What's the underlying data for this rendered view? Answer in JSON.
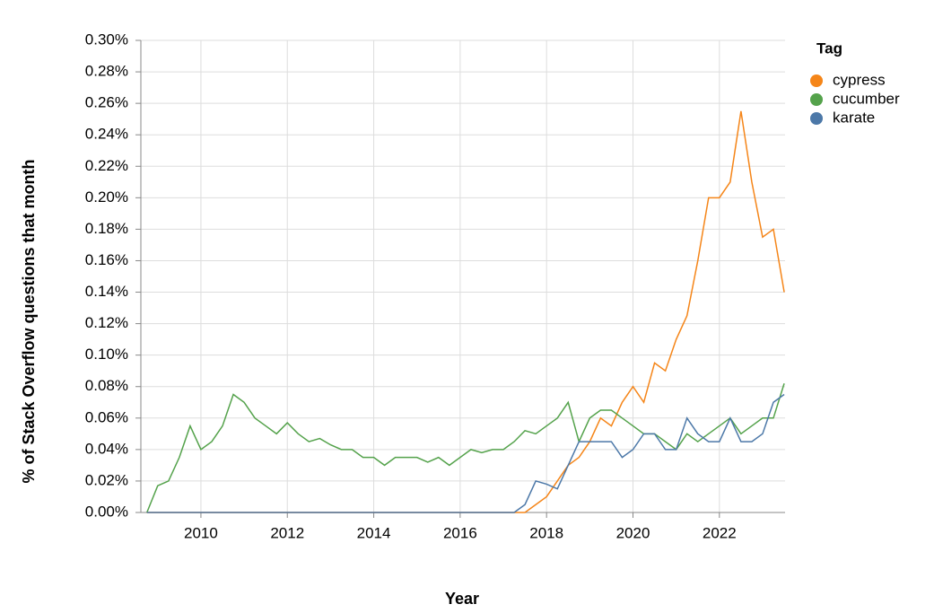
{
  "chart_data": {
    "type": "line",
    "x_label": "Year",
    "y_label": "% of Stack Overflow questions that month",
    "legend_title": "Tag",
    "legend": "right",
    "grid": true,
    "x": [
      2008.75,
      2009,
      2009.25,
      2009.5,
      2009.75,
      2010,
      2010.25,
      2010.5,
      2010.75,
      2011,
      2011.25,
      2011.5,
      2011.75,
      2012,
      2012.25,
      2012.5,
      2012.75,
      2013,
      2013.25,
      2013.5,
      2013.75,
      2014,
      2014.25,
      2014.5,
      2014.75,
      2015,
      2015.25,
      2015.5,
      2015.75,
      2016,
      2016.25,
      2016.5,
      2016.75,
      2017,
      2017.25,
      2017.5,
      2017.75,
      2018,
      2018.25,
      2018.5,
      2018.75,
      2019,
      2019.25,
      2019.5,
      2019.75,
      2020,
      2020.25,
      2020.5,
      2020.75,
      2021,
      2021.25,
      2021.5,
      2021.75,
      2022,
      2022.25,
      2022.5,
      2022.75,
      2023,
      2023.25,
      2023.5
    ],
    "series": [
      {
        "name": "cypress",
        "color": "#f58518",
        "values": [
          0,
          0,
          0,
          0,
          0,
          0,
          0,
          0,
          0,
          0,
          0,
          0,
          0,
          0,
          0,
          0,
          0,
          0,
          0,
          0,
          0,
          0,
          0,
          0,
          0,
          0,
          0,
          0,
          0,
          0,
          0,
          0,
          0,
          0,
          0,
          0,
          0.005,
          0.01,
          0.02,
          0.03,
          0.035,
          0.045,
          0.06,
          0.055,
          0.07,
          0.08,
          0.07,
          0.095,
          0.09,
          0.11,
          0.125,
          0.16,
          0.2,
          0.2,
          0.21,
          0.255,
          0.21,
          0.175,
          0.18,
          0.14
        ]
      },
      {
        "name": "cucumber",
        "color": "#54a24b",
        "values": [
          0,
          0.017,
          0.02,
          0.035,
          0.055,
          0.04,
          0.045,
          0.055,
          0.075,
          0.07,
          0.06,
          0.055,
          0.05,
          0.057,
          0.05,
          0.045,
          0.047,
          0.043,
          0.04,
          0.04,
          0.035,
          0.035,
          0.03,
          0.035,
          0.035,
          0.035,
          0.032,
          0.035,
          0.03,
          0.035,
          0.04,
          0.038,
          0.04,
          0.04,
          0.045,
          0.052,
          0.05,
          0.055,
          0.06,
          0.07,
          0.045,
          0.06,
          0.065,
          0.065,
          0.06,
          0.055,
          0.05,
          0.05,
          0.045,
          0.04,
          0.05,
          0.045,
          0.05,
          0.055,
          0.06,
          0.05,
          0.055,
          0.06,
          0.06,
          0.082
        ]
      },
      {
        "name": "karate",
        "color": "#4c78a8",
        "values": [
          0,
          0,
          0,
          0,
          0,
          0,
          0,
          0,
          0,
          0,
          0,
          0,
          0,
          0,
          0,
          0,
          0,
          0,
          0,
          0,
          0,
          0,
          0,
          0,
          0,
          0,
          0,
          0,
          0,
          0,
          0,
          0,
          0,
          0,
          0,
          0.005,
          0.02,
          0.018,
          0.015,
          0.03,
          0.045,
          0.045,
          0.045,
          0.045,
          0.035,
          0.04,
          0.05,
          0.05,
          0.04,
          0.04,
          0.06,
          0.05,
          0.045,
          0.045,
          0.06,
          0.045,
          0.045,
          0.05,
          0.07,
          0.075
        ]
      }
    ],
    "xlim": [
      2008.61,
      2023.52
    ],
    "xticks": [
      2010,
      2012,
      2014,
      2016,
      2018,
      2020,
      2022
    ],
    "ylim": [
      0,
      0.3
    ],
    "yticks": [
      {
        "value": 0,
        "label": "0.00%"
      },
      {
        "value": 0.02,
        "label": "0.02%"
      },
      {
        "value": 0.04,
        "label": "0.04%"
      },
      {
        "value": 0.06,
        "label": "0.06%"
      },
      {
        "value": 0.08,
        "label": "0.08%"
      },
      {
        "value": 0.1,
        "label": "0.10%"
      },
      {
        "value": 0.12,
        "label": "0.12%"
      },
      {
        "value": 0.14,
        "label": "0.14%"
      },
      {
        "value": 0.16,
        "label": "0.16%"
      },
      {
        "value": 0.18,
        "label": "0.18%"
      },
      {
        "value": 0.2,
        "label": "0.20%"
      },
      {
        "value": 0.22,
        "label": "0.22%"
      },
      {
        "value": 0.24,
        "label": "0.24%"
      },
      {
        "value": 0.26,
        "label": "0.26%"
      },
      {
        "value": 0.28,
        "label": "0.28%"
      },
      {
        "value": 0.3,
        "label": "0.30%"
      }
    ]
  }
}
